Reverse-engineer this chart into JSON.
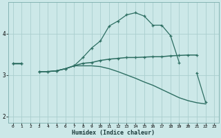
{
  "xlabel": "Humidex (Indice chaleur)",
  "bg_color": "#cce8e8",
  "line_color": "#2d6e62",
  "grid_color": "#aacece",
  "x_values": [
    0,
    1,
    2,
    3,
    4,
    5,
    6,
    7,
    8,
    9,
    10,
    11,
    12,
    13,
    14,
    15,
    16,
    17,
    18,
    19,
    20,
    21,
    22,
    23
  ],
  "line_upper": [
    3.28,
    3.28,
    null,
    3.08,
    3.08,
    3.1,
    3.15,
    3.22,
    3.42,
    3.65,
    3.82,
    4.18,
    4.3,
    4.45,
    4.5,
    4.42,
    4.2,
    4.2,
    3.95,
    3.3,
    null,
    3.05,
    2.35,
    null
  ],
  "line_mid": [
    3.28,
    3.28,
    null,
    3.08,
    3.08,
    3.1,
    3.15,
    3.22,
    3.28,
    3.3,
    3.35,
    3.38,
    3.4,
    3.42,
    3.42,
    3.43,
    3.44,
    3.44,
    3.46,
    3.47,
    3.48,
    3.48,
    null,
    null
  ],
  "line_low": [
    3.28,
    3.28,
    null,
    3.08,
    3.08,
    3.1,
    3.15,
    3.22,
    3.22,
    3.22,
    3.2,
    3.15,
    3.08,
    3.0,
    2.92,
    2.83,
    2.75,
    2.65,
    2.55,
    2.45,
    2.38,
    2.33,
    2.3,
    null
  ],
  "ylim": [
    1.85,
    4.75
  ],
  "xlim": [
    -0.5,
    23.5
  ],
  "yticks": [
    2,
    3,
    4
  ],
  "xticks": [
    0,
    1,
    2,
    3,
    4,
    5,
    6,
    7,
    8,
    9,
    10,
    11,
    12,
    13,
    14,
    15,
    16,
    17,
    18,
    19,
    20,
    21,
    22,
    23
  ]
}
